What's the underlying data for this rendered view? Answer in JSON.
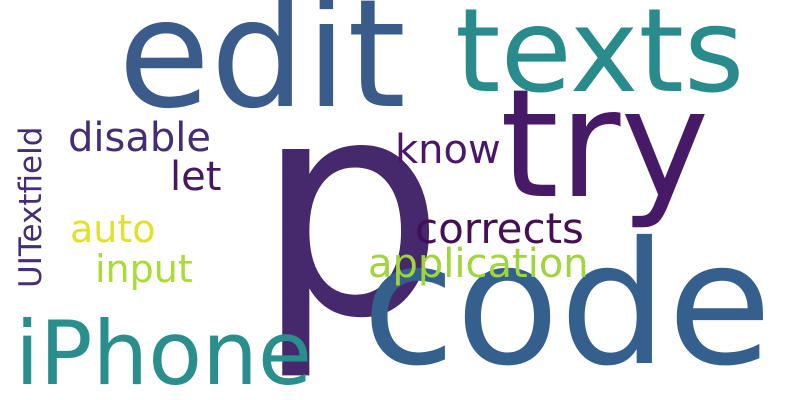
{
  "words": {
    "p": {
      "text": "p",
      "color": "#46286d"
    },
    "code": {
      "text": "code",
      "color": "#35608d"
    },
    "edit": {
      "text": "edit",
      "color": "#3b5b8b"
    },
    "texts": {
      "text": "texts",
      "color": "#2a8b8c"
    },
    "try": {
      "text": "try",
      "color": "#471a67"
    },
    "iphone": {
      "text": "iPhone",
      "color": "#2a8e8c"
    },
    "corrects": {
      "text": "corrects",
      "color": "#440f55"
    },
    "application": {
      "text": "application",
      "color": "#a0d53c"
    },
    "input": {
      "text": "input",
      "color": "#a9dc38"
    },
    "auto": {
      "text": "auto",
      "color": "#e0e32a"
    },
    "disable": {
      "text": "disable",
      "color": "#452d75"
    },
    "let": {
      "text": "let",
      "color": "#45185f"
    },
    "know": {
      "text": "know",
      "color": "#4a1869"
    },
    "uitextfield": {
      "text": "UITextfield",
      "color": "#452e75",
      "orientation": "vertical"
    }
  }
}
